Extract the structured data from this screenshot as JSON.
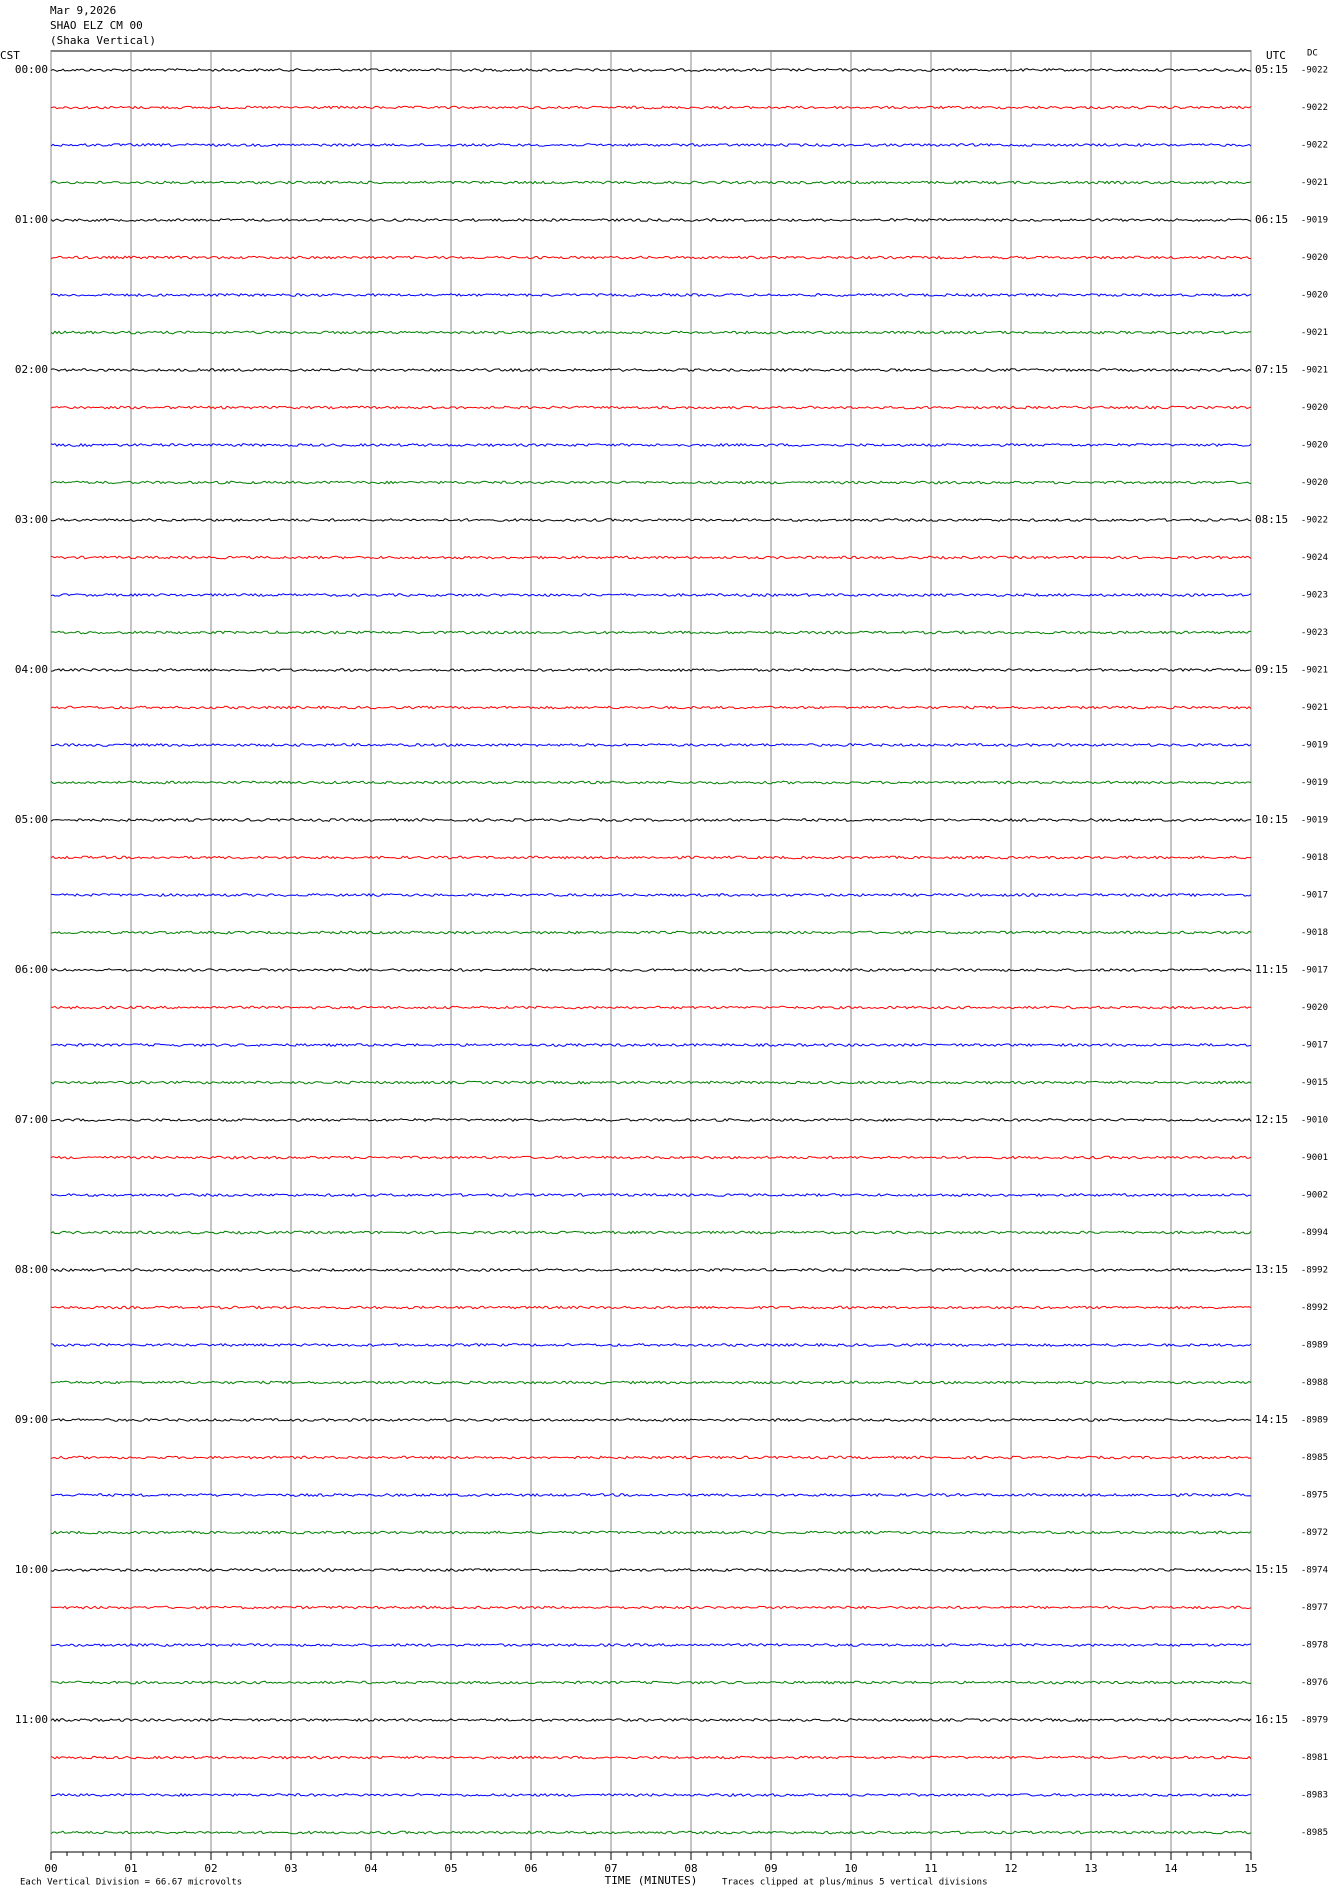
{
  "chart_data": {
    "type": "helicorder",
    "title_lines": [
      "Mar 9,2026",
      "SHAO ELZ CM 00",
      "(Shaka Vertical)"
    ],
    "left_axis_label": "CST",
    "right_axis_label": "UTC",
    "dc_label": "DC",
    "cst_labels": [
      "00:00",
      "01:00",
      "02:00",
      "03:00",
      "04:00",
      "05:00",
      "06:00",
      "07:00",
      "08:00",
      "09:00",
      "10:00",
      "11:00"
    ],
    "utc_labels": [
      "05:15",
      "06:15",
      "07:15",
      "08:15",
      "09:15",
      "10:15",
      "11:15",
      "12:15",
      "13:15",
      "14:15",
      "15:15",
      "16:15"
    ],
    "dc_values": [
      -9022,
      -9022,
      -9022,
      -9021,
      -9019,
      -9020,
      -9020,
      -9021,
      -9021,
      -9020,
      -9020,
      -9020,
      -9022,
      -9024,
      -9023,
      -9023,
      -9021,
      -9021,
      -9019,
      -9019,
      -9019,
      -9018,
      -9017,
      -9018,
      -9017,
      -9020,
      -9017,
      -9015,
      -9010,
      -9001,
      -9002,
      -8994,
      -8992,
      -8992,
      -8989,
      -8988,
      -8989,
      -8985,
      -8975,
      -8972,
      -8974,
      -8977,
      -8978,
      -8976,
      -8979,
      -8981,
      -8983,
      -8985
    ],
    "trace_colors": [
      "#000000",
      "#ff0000",
      "#0000ff",
      "#008000"
    ],
    "xlabel": "TIME (MINUTES)",
    "xlim": [
      0,
      15
    ],
    "xticks": [
      {
        "value": 0,
        "label": "00"
      },
      {
        "value": 1,
        "label": "01"
      },
      {
        "value": 2,
        "label": "02"
      },
      {
        "value": 3,
        "label": "03"
      },
      {
        "value": 4,
        "label": "04"
      },
      {
        "value": 5,
        "label": "05"
      },
      {
        "value": 6,
        "label": "06"
      },
      {
        "value": 7,
        "label": "07"
      },
      {
        "value": 8,
        "label": "08"
      },
      {
        "value": 9,
        "label": "09"
      },
      10,
      11,
      12,
      13,
      14,
      15
    ],
    "grid": true,
    "footer_left": "Each Vertical Division =   66.67 microvolts",
    "footer_right": "Traces clipped at plus/minus 5 vertical divisions"
  }
}
